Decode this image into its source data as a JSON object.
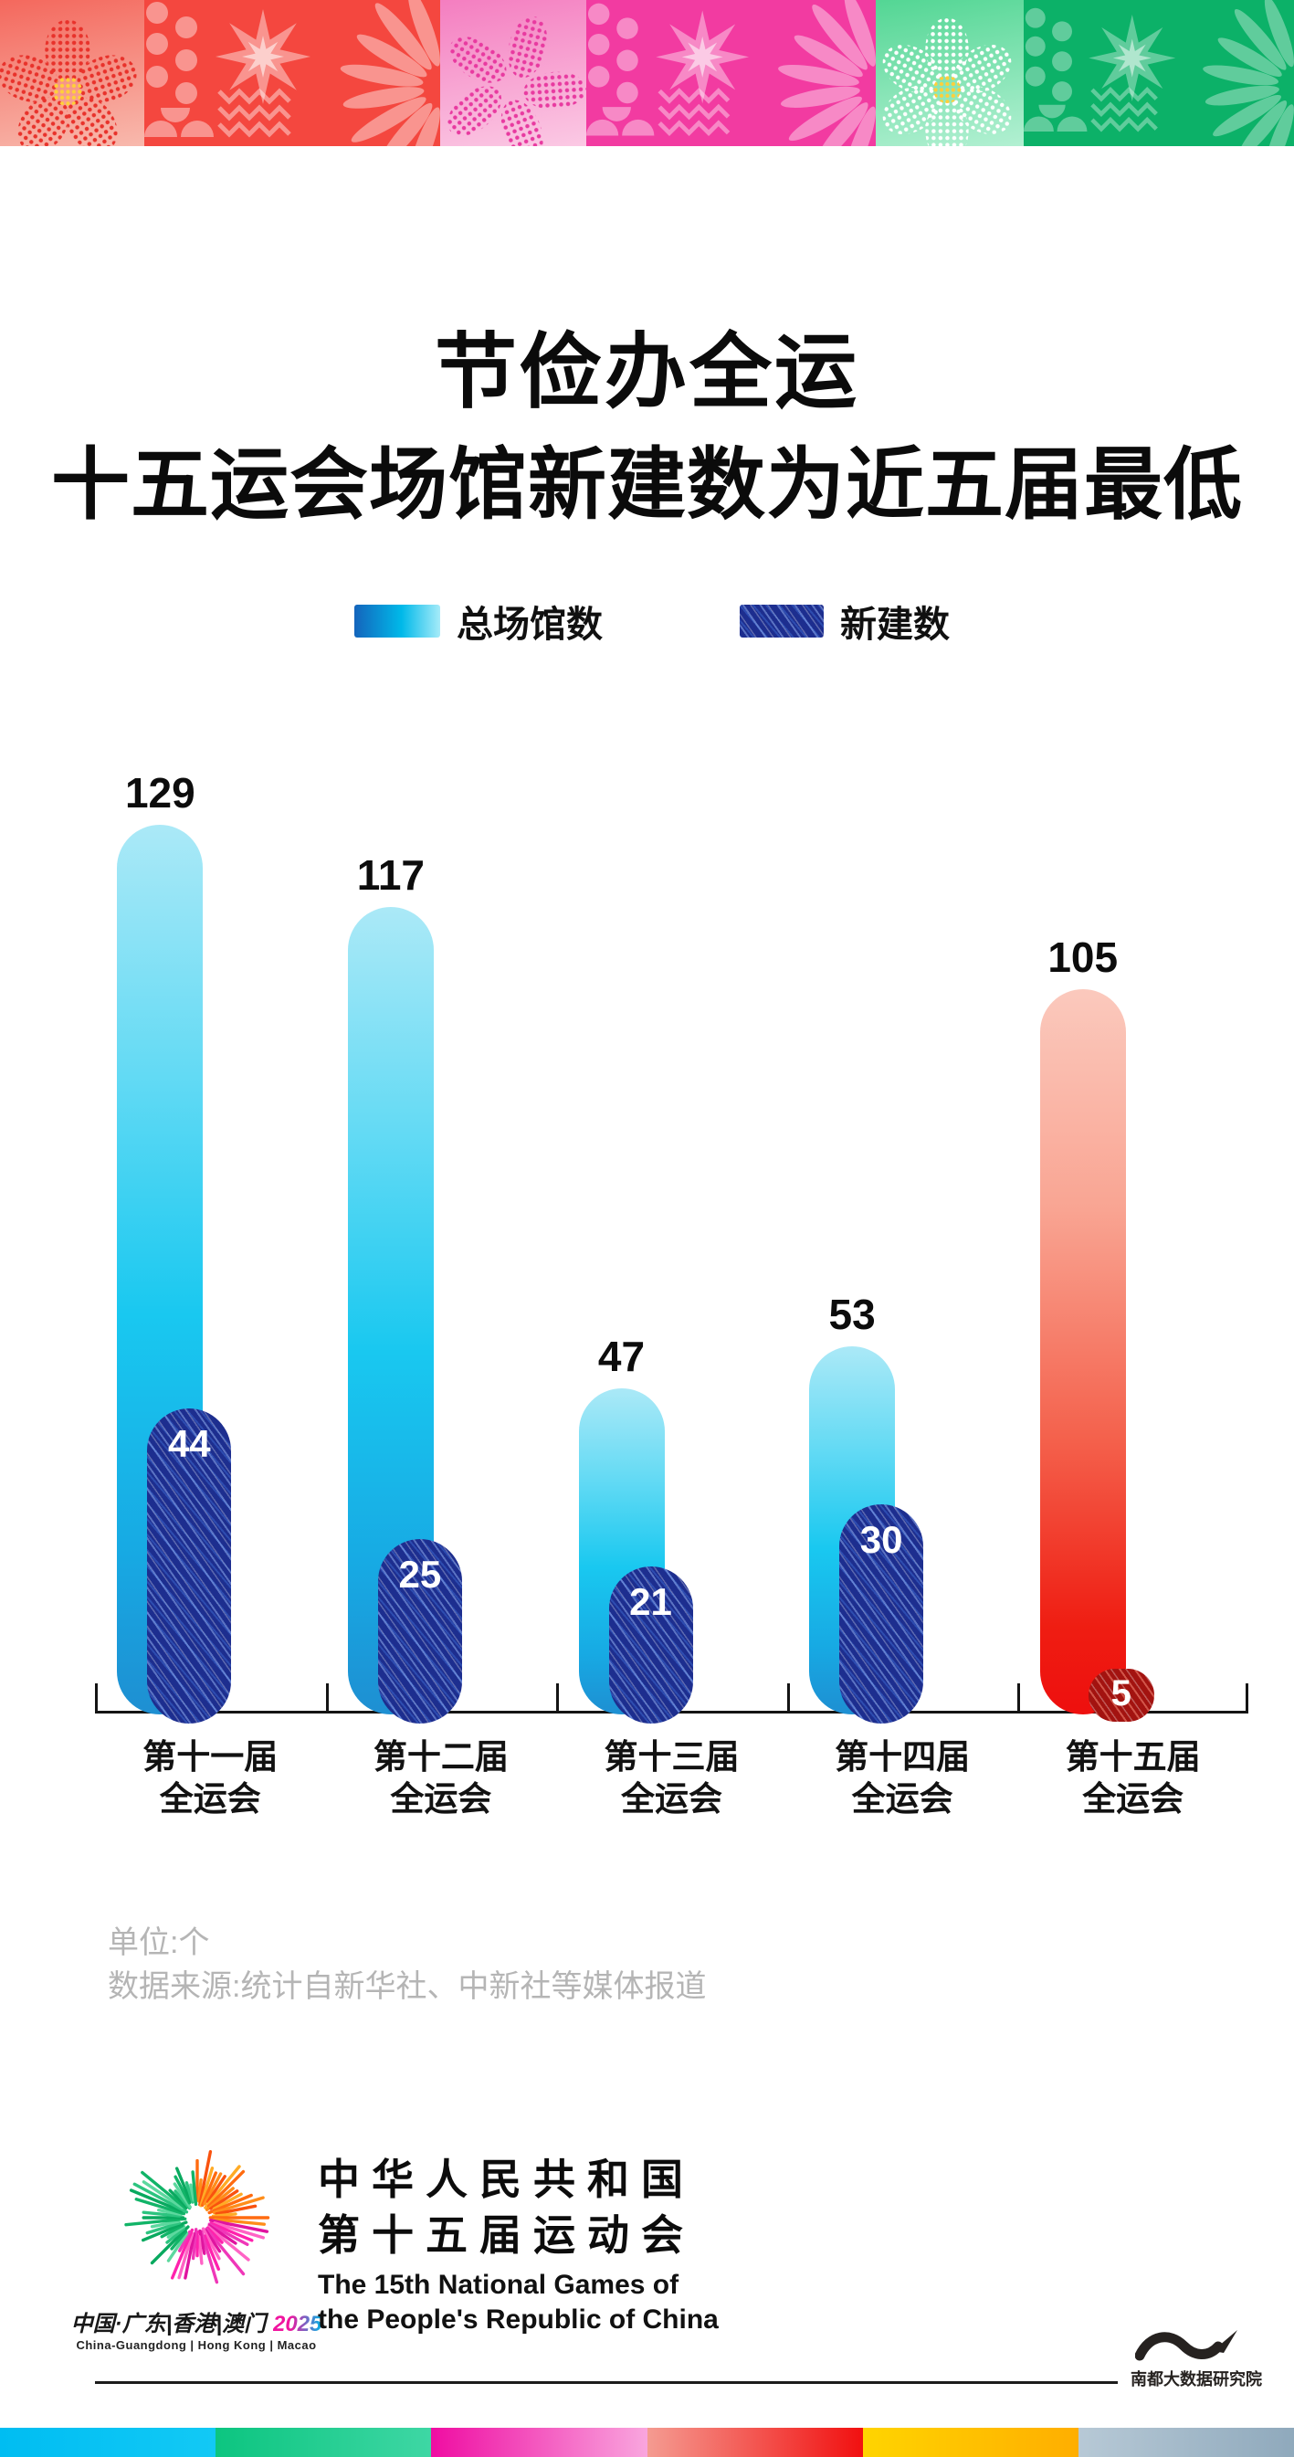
{
  "title": {
    "line1": "节俭办全运",
    "line2": "十五运会场馆新建数为近五届最低"
  },
  "legend": [
    {
      "label": "总场馆数",
      "swatch": "blue-cyan-gradient"
    },
    {
      "label": "新建数",
      "swatch": "navy-hatched"
    }
  ],
  "chart_data": {
    "type": "bar",
    "title": "十五运会场馆新建数为近五届最低",
    "unit": "个",
    "categories": [
      "第十一届全运会",
      "第十二届全运会",
      "第十三届全运会",
      "第十四届全运会",
      "第十五届全运会"
    ],
    "categories_lines": [
      [
        "第十一届",
        "全运会"
      ],
      [
        "第十二届",
        "全运会"
      ],
      [
        "第十三届",
        "全运会"
      ],
      [
        "第十四届",
        "全运会"
      ],
      [
        "第十五届",
        "全运会"
      ]
    ],
    "series": [
      {
        "name": "总场馆数",
        "values": [
          129,
          117,
          47,
          53,
          105
        ]
      },
      {
        "name": "新建数",
        "values": [
          44,
          25,
          21,
          30,
          5
        ]
      }
    ],
    "highlight_index": 4,
    "ylim": [
      0,
      135
    ],
    "grid": false,
    "legend_position": "top",
    "colors": {
      "total_top": "#abe9f7",
      "total_bottom": "#1e8fd2",
      "new_bar": "#1d2e8f",
      "highlight_top": "#fbc9bd",
      "highlight_bottom": "#ee0f0e",
      "highlight_new": "#a31310",
      "axis": "#141414",
      "value_label": "#0c0c0c",
      "value_label_on_bar": "#ffffff"
    }
  },
  "footer": {
    "unit_note": "单位:个",
    "source_note": "数据来源:统计自新华社、中新社等媒体报道"
  },
  "branding": {
    "host_line": "中国·广东|香港|澳门",
    "host_year": "2025",
    "host_en": "China-Guangdong | Hong Kong | Macao",
    "games_cn1": "中华人民共和国",
    "games_cn2": "第十五届运动会",
    "games_en1": "The 15th National Games of",
    "games_en2": "the People's Republic of China",
    "research_institute": "南都大数据研究院"
  },
  "banner_colors": {
    "red_panel": "#f4473f",
    "pink_panel": "#f23ba1",
    "green_panel": "#0cb168",
    "flower_red": "#e8322b",
    "flower_pink": "#e83aa0",
    "flower_white": "#ffffff",
    "flower_center": "#ffcf3a"
  },
  "strip_colors": [
    "#00bdf2",
    "#0cc580",
    "#ef0da2",
    "#f21010",
    "#ffd400",
    "#9fb4c6"
  ]
}
